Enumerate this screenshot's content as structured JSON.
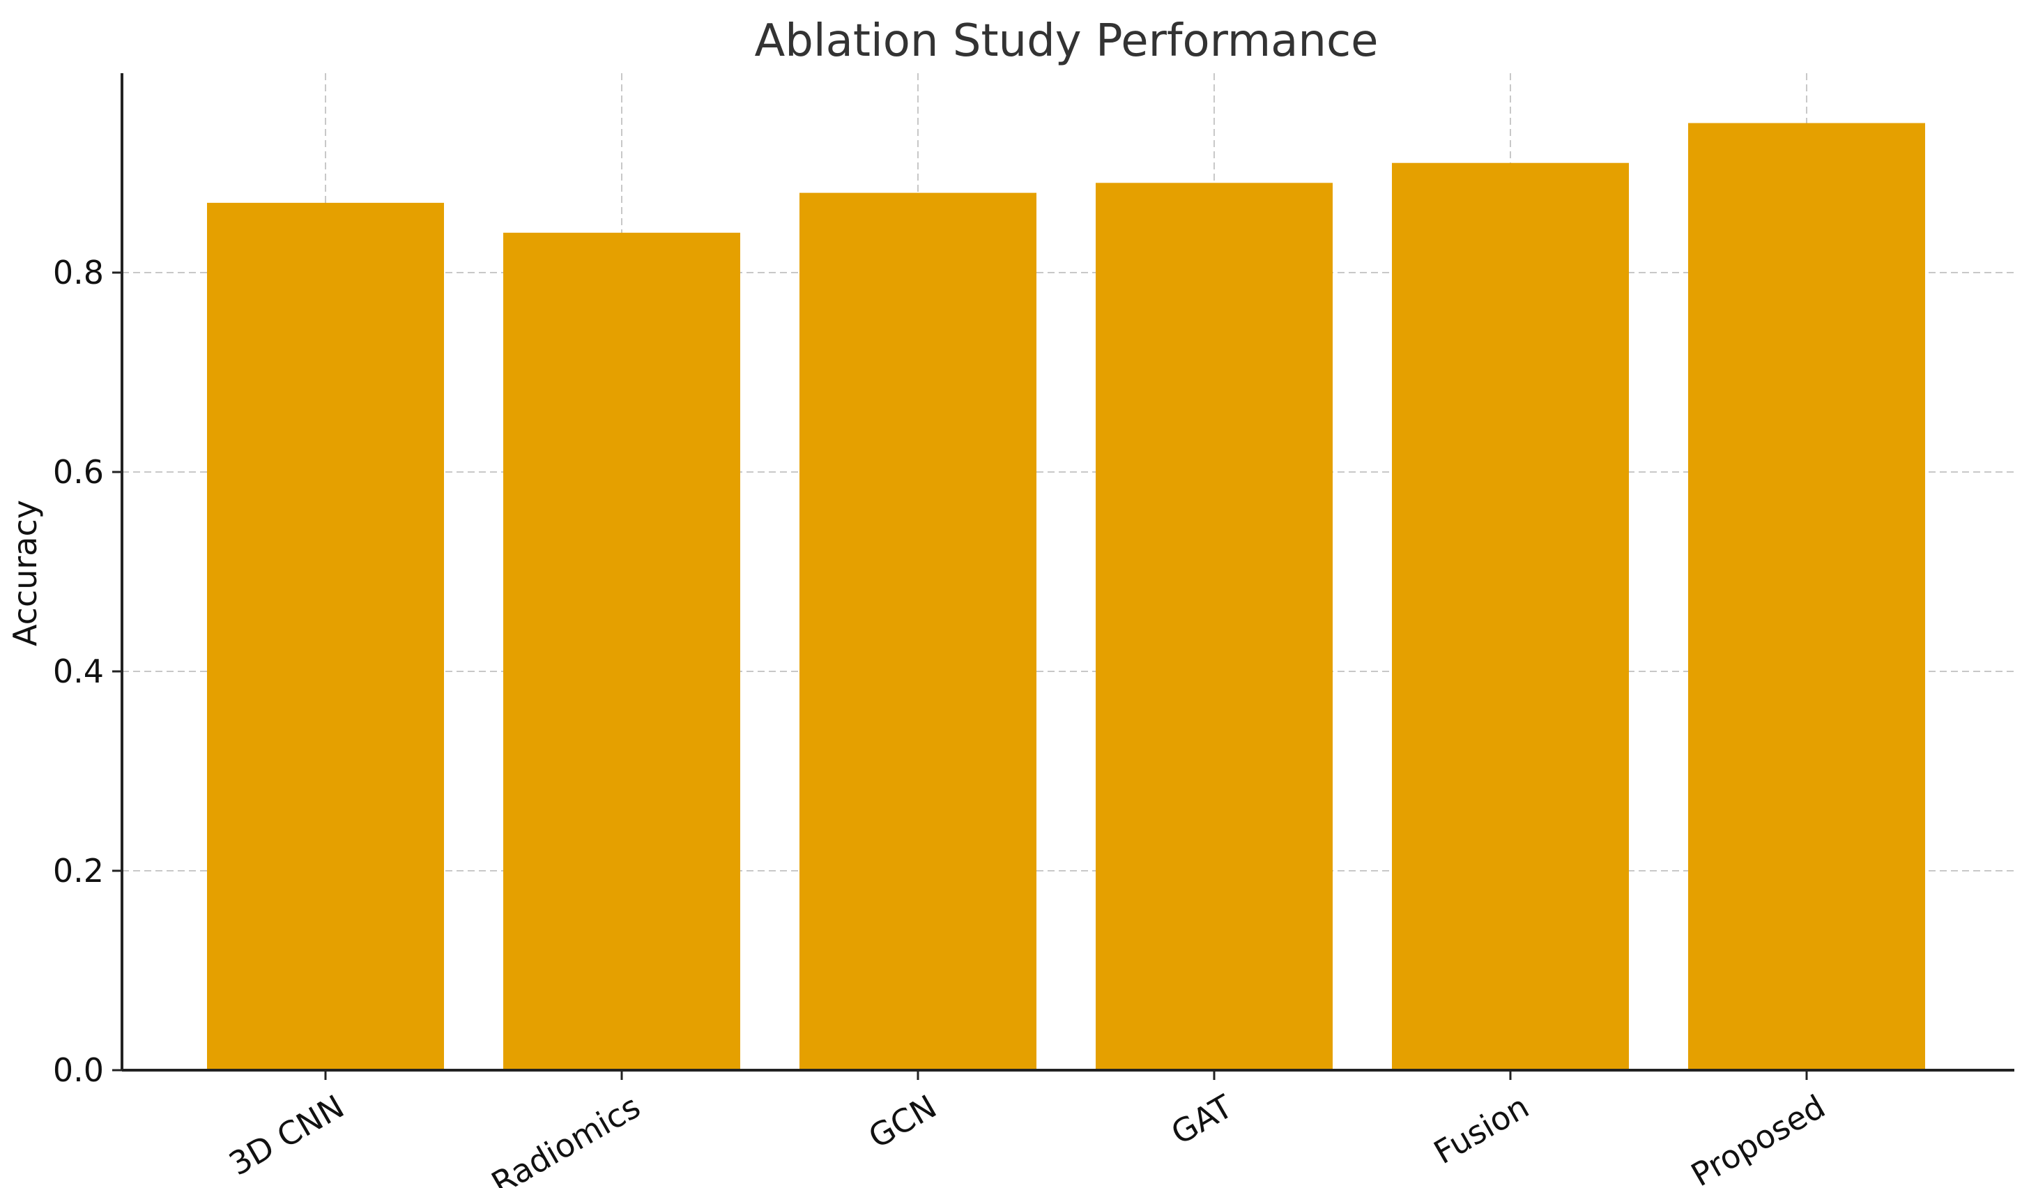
{
  "chart_data": {
    "type": "bar",
    "title": "Ablation Study Performance",
    "xlabel": "",
    "ylabel": "Accuracy",
    "categories": [
      "3D CNN",
      "Radiomics",
      "GCN",
      "GAT",
      "Fusion",
      "Proposed"
    ],
    "values": [
      0.87,
      0.84,
      0.88,
      0.89,
      0.91,
      0.95
    ],
    "ylim": [
      0,
      1.0
    ],
    "yticks": [
      0.0,
      0.2,
      0.4,
      0.6,
      0.8
    ],
    "ytick_labels": [
      "0.0",
      "0.2",
      "0.4",
      "0.6",
      "0.8"
    ],
    "grid": true,
    "bar_color": "#E5A000",
    "x_tick_rotation": "30 degrees"
  }
}
